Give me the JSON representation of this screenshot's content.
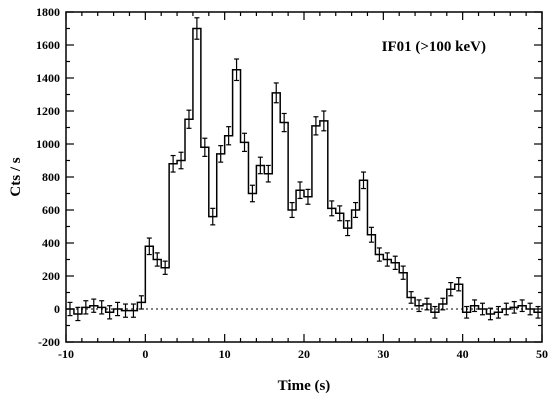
{
  "chart_data": {
    "type": "line",
    "step": true,
    "annotation": "IF01 (>100 keV)",
    "xlabel": "Time (s)",
    "ylabel": "Cts / s",
    "xlim": [
      -10,
      50
    ],
    "ylim": [
      -200,
      1800
    ],
    "x_ticks": [
      -10,
      0,
      10,
      20,
      30,
      40,
      50
    ],
    "y_ticks": [
      -200,
      0,
      200,
      400,
      600,
      800,
      1000,
      1200,
      1400,
      1600,
      1800
    ],
    "zero_line": true,
    "bin_width": 1.0,
    "series": [
      {
        "bin_start": [
          -10,
          -9,
          -8,
          -7,
          -6,
          -5,
          -4,
          -3,
          -2,
          -1,
          0,
          1,
          2,
          3,
          4,
          5,
          6,
          7,
          8,
          9,
          10,
          11,
          12,
          13,
          14,
          15,
          16,
          17,
          18,
          19,
          20,
          21,
          22,
          23,
          24,
          25,
          26,
          27,
          28,
          29,
          30,
          31,
          32,
          33,
          34,
          35,
          36,
          37,
          38,
          39,
          40,
          41,
          42,
          43,
          44,
          45,
          46,
          47,
          48,
          49
        ],
        "values": [
          0,
          -30,
          10,
          20,
          10,
          -20,
          0,
          -10,
          -10,
          40,
          380,
          300,
          250,
          880,
          900,
          1150,
          1700,
          980,
          560,
          940,
          1050,
          1450,
          1010,
          700,
          870,
          820,
          1310,
          1130,
          600,
          720,
          680,
          1110,
          1140,
          610,
          580,
          490,
          600,
          780,
          450,
          330,
          300,
          280,
          220,
          70,
          20,
          30,
          -20,
          30,
          120,
          150,
          -20,
          20,
          0,
          -30,
          -20,
          0,
          10,
          20,
          0,
          -20
        ],
        "errors": [
          40,
          40,
          40,
          40,
          40,
          40,
          40,
          40,
          40,
          40,
          50,
          40,
          40,
          50,
          50,
          55,
          65,
          55,
          50,
          50,
          55,
          65,
          55,
          50,
          50,
          50,
          60,
          55,
          45,
          50,
          45,
          55,
          60,
          45,
          45,
          45,
          45,
          50,
          45,
          40,
          40,
          40,
          40,
          35,
          35,
          35,
          35,
          35,
          40,
          40,
          35,
          35,
          35,
          35,
          35,
          35,
          35,
          35,
          35,
          35
        ]
      }
    ]
  }
}
